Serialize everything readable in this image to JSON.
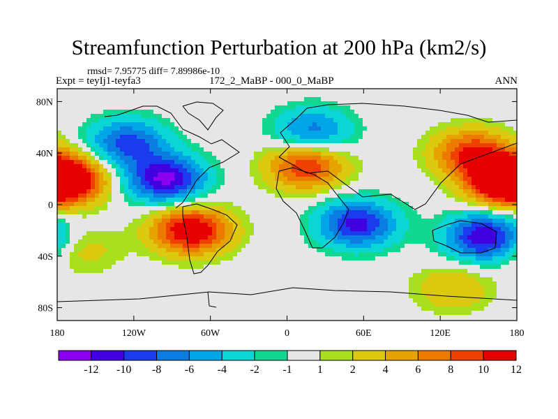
{
  "title": "Streamfunction Perturbation at 200 hPa (km2/s)",
  "stats": "rmsd= 7.95775 diff= 7.89986e-10",
  "experiment": "Expt = teyIj1-teyfa3",
  "comparison": "172_2_MaBP - 000_0_MaBP",
  "period": "ANN",
  "map": {
    "projection": "cylindrical equidistant",
    "lon_range": [
      -180,
      180
    ],
    "lat_range": [
      -90,
      90
    ],
    "lon_ticks": [
      {
        "value": -180,
        "label": "180"
      },
      {
        "value": -120,
        "label": "120W"
      },
      {
        "value": -60,
        "label": "60W"
      },
      {
        "value": 0,
        "label": "0"
      },
      {
        "value": 60,
        "label": "60E"
      },
      {
        "value": 120,
        "label": "120E"
      },
      {
        "value": 180,
        "label": "180"
      }
    ],
    "lat_ticks": [
      {
        "value": 80,
        "label": "80N"
      },
      {
        "value": 40,
        "label": "40N"
      },
      {
        "value": 0,
        "label": "0"
      },
      {
        "value": -40,
        "label": "40S"
      },
      {
        "value": -80,
        "label": "80S"
      }
    ],
    "extrema": [
      {
        "lon": -95,
        "lat": 20,
        "value": -12.5
      },
      {
        "lon": -125,
        "lat": 48,
        "value": -9
      },
      {
        "lon": 20,
        "lat": 57,
        "value": -7
      },
      {
        "lon": 55,
        "lat": -15,
        "value": -11
      },
      {
        "lon": 155,
        "lat": -25,
        "value": -12
      },
      {
        "lon": 145,
        "lat": 40,
        "value": 10
      },
      {
        "lon": 170,
        "lat": 18,
        "value": 12.5
      },
      {
        "lon": -172,
        "lat": 20,
        "value": 12
      },
      {
        "lon": 15,
        "lat": 30,
        "value": 10
      },
      {
        "lon": -75,
        "lat": -20,
        "value": 13
      },
      {
        "lon": 130,
        "lat": -65,
        "value": 4
      },
      {
        "lon": -160,
        "lat": -35,
        "value": 3
      }
    ]
  },
  "colorbar": {
    "levels": [
      "-12",
      "-10",
      "-8",
      "-6",
      "-4",
      "-2",
      "-1",
      "1",
      "2",
      "4",
      "6",
      "8",
      "10",
      "12"
    ],
    "colors": [
      "#8a00f0",
      "#4000e0",
      "#1a3cee",
      "#0b7ce0",
      "#00a6e6",
      "#0ad6d6",
      "#10d890",
      "#e6e6e6",
      "#a8e020",
      "#dcca10",
      "#e6a300",
      "#ec7a00",
      "#f04000",
      "#e60000"
    ]
  }
}
